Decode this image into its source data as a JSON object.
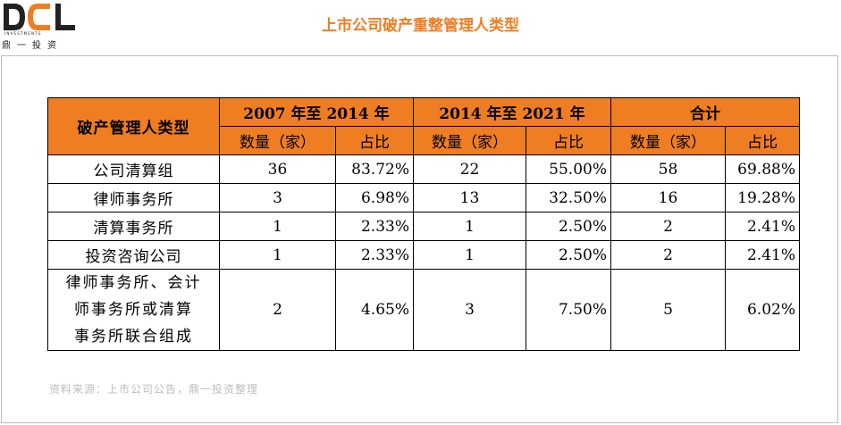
{
  "logo": {
    "mark": "DCL",
    "sub": "INVESTMENTS",
    "cn": "鼎一投资"
  },
  "title": "上市公司破产重整管理人类型",
  "table": {
    "row_header": "破产管理人类型",
    "periods": [
      "2007 年至 2014 年",
      "2014 年至 2021 年",
      "合计"
    ],
    "sub_headers": [
      "数量（家）",
      "占比",
      "数量（家）",
      "占比",
      "数量（家）",
      "占比"
    ],
    "rows": [
      {
        "type": "公司清算组",
        "values": [
          "36",
          "83.72%",
          "22",
          "55.00%",
          "58",
          "69.88%"
        ]
      },
      {
        "type": "律师事务所",
        "values": [
          "3",
          "6.98%",
          "13",
          "32.50%",
          "16",
          "19.28%"
        ]
      },
      {
        "type": "清算事务所",
        "values": [
          "1",
          "2.33%",
          "1",
          "2.50%",
          "2",
          "2.41%"
        ]
      },
      {
        "type": "投资咨询公司",
        "values": [
          "1",
          "2.33%",
          "1",
          "2.50%",
          "2",
          "2.41%"
        ]
      },
      {
        "type_lines": [
          "律师事务所、会计",
          "师事务所或清算",
          "事务所联合组成"
        ],
        "values": [
          "2",
          "4.65%",
          "3",
          "7.50%",
          "5",
          "6.02%"
        ]
      }
    ]
  },
  "source": "资料来源：上市公司公告，鼎一投资整理",
  "colors": {
    "accent": "#ef7d22",
    "border": "#000000",
    "panel_border": "#bdbdbd",
    "source_text": "#bdbdbd"
  }
}
